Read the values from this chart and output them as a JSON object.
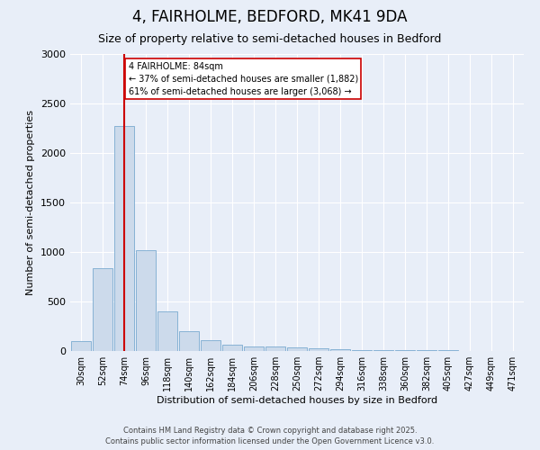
{
  "title1": "4, FAIRHOLME, BEDFORD, MK41 9DA",
  "title2": "Size of property relative to semi-detached houses in Bedford",
  "xlabel": "Distribution of semi-detached houses by size in Bedford",
  "ylabel": "Number of semi-detached properties",
  "bin_labels": [
    "30sqm",
    "52sqm",
    "74sqm",
    "96sqm",
    "118sqm",
    "140sqm",
    "162sqm",
    "184sqm",
    "206sqm",
    "228sqm",
    "250sqm",
    "272sqm",
    "294sqm",
    "316sqm",
    "338sqm",
    "360sqm",
    "382sqm",
    "405sqm",
    "427sqm",
    "449sqm",
    "471sqm"
  ],
  "bar_values": [
    100,
    840,
    2270,
    1020,
    400,
    200,
    110,
    65,
    50,
    50,
    35,
    25,
    20,
    10,
    5,
    5,
    5,
    5,
    3,
    2,
    2
  ],
  "bar_color": "#ccdaeb",
  "bar_edge_color": "#7aaad0",
  "property_bin_index": 2,
  "vline_color": "#cc0000",
  "annotation_title": "4 FAIRHOLME: 84sqm",
  "annotation_line1": "← 37% of semi-detached houses are smaller (1,882)",
  "annotation_line2": "61% of semi-detached houses are larger (3,068) →",
  "annotation_box_color": "#ffffff",
  "annotation_box_edge": "#cc0000",
  "ylim": [
    0,
    3000
  ],
  "yticks": [
    0,
    500,
    1000,
    1500,
    2000,
    2500,
    3000
  ],
  "footer1": "Contains HM Land Registry data © Crown copyright and database right 2025.",
  "footer2": "Contains public sector information licensed under the Open Government Licence v3.0.",
  "bg_color": "#e8eef8",
  "plot_bg_color": "#e8eef8",
  "grid_color": "#ffffff",
  "title1_fontsize": 12,
  "title2_fontsize": 9,
  "ylabel_fontsize": 8,
  "xlabel_fontsize": 8,
  "tick_fontsize": 7,
  "footer_fontsize": 6,
  "ann_fontsize": 7
}
